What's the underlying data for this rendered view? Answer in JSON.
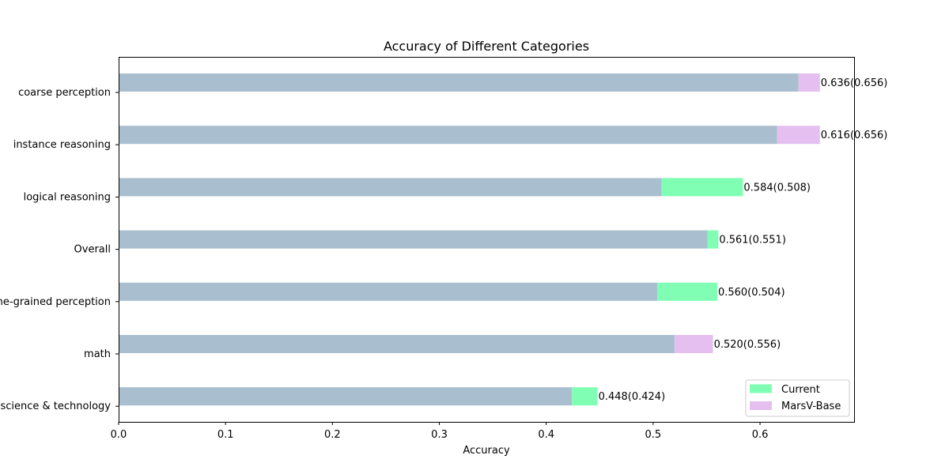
{
  "chart_data": {
    "type": "bar",
    "orientation": "horizontal",
    "title": "Accuracy of Different Categories",
    "xlabel": "Accuracy",
    "ylabel": "",
    "xlim": [
      0,
      0.688
    ],
    "xticks": [
      "0.0",
      "0.1",
      "0.2",
      "0.3",
      "0.4",
      "0.5",
      "0.6"
    ],
    "grid": false,
    "legend_position": "bottom-right",
    "categories": [
      "coarse perception",
      "instance reasoning",
      "logical reasoning",
      "Overall",
      "fine-grained perception",
      "math",
      "science & technology"
    ],
    "series": [
      {
        "name": "Current",
        "values": [
          0.636,
          0.616,
          0.584,
          0.561,
          0.56,
          0.52,
          0.448
        ]
      },
      {
        "name": "MarsV-Base",
        "values": [
          0.656,
          0.656,
          0.508,
          0.551,
          0.504,
          0.556,
          0.424
        ]
      }
    ],
    "labels": [
      "0.636(0.656)",
      "0.616(0.656)",
      "0.584(0.508)",
      "0.561(0.551)",
      "0.560(0.504)",
      "0.520(0.556)",
      "0.448(0.424)"
    ],
    "colors": {
      "base_bar": "#a9bfcf",
      "gain": "#80ffb4",
      "loss": "#e4bff0"
    },
    "legend": [
      {
        "label": "Current",
        "color": "#80ffb4"
      },
      {
        "label": "MarsV-Base",
        "color": "#e4bff0"
      }
    ]
  }
}
